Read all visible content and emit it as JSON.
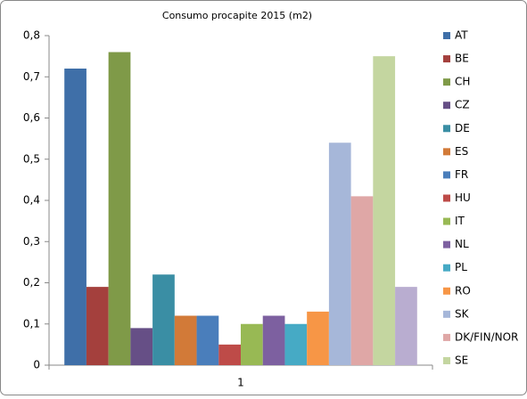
{
  "chart_data": {
    "type": "bar",
    "title": "Consumo procapite 2015 (m2)",
    "categories": [
      "1"
    ],
    "series": [
      {
        "name": "AT",
        "color": "#3f6fa8",
        "values": [
          0.72
        ]
      },
      {
        "name": "BE",
        "color": "#a4403d",
        "values": [
          0.19
        ]
      },
      {
        "name": "CH",
        "color": "#7f9a48",
        "values": [
          0.76
        ]
      },
      {
        "name": "CZ",
        "color": "#664f86",
        "values": [
          0.09
        ]
      },
      {
        "name": "DE",
        "color": "#3a8ea4",
        "values": [
          0.22
        ]
      },
      {
        "name": "ES",
        "color": "#d27a38",
        "values": [
          0.12
        ]
      },
      {
        "name": "FR",
        "color": "#4a7ebb",
        "values": [
          0.12
        ]
      },
      {
        "name": "HU",
        "color": "#be4b48",
        "values": [
          0.05
        ]
      },
      {
        "name": "IT",
        "color": "#98b954",
        "values": [
          0.1
        ]
      },
      {
        "name": "NL",
        "color": "#7d60a0",
        "values": [
          0.12
        ]
      },
      {
        "name": "PL",
        "color": "#46aac5",
        "values": [
          0.1
        ]
      },
      {
        "name": "RO",
        "color": "#f79646",
        "values": [
          0.13
        ]
      },
      {
        "name": "SK",
        "color": "#a6b7d9",
        "values": [
          0.54
        ]
      },
      {
        "name": "DK/FIN/NOR",
        "color": "#dfa7a6",
        "values": [
          0.41
        ]
      },
      {
        "name": "SE",
        "color": "#c4d6a0",
        "values": [
          0.75
        ]
      },
      {
        "color": "#b9add0",
        "values": [
          0.19
        ]
      }
    ],
    "ylim": [
      0,
      0.8
    ],
    "yticks": [
      0,
      {
        "value": 0.1,
        "label": "0,1"
      },
      {
        "value": 0.2,
        "label": "0,2"
      },
      {
        "value": 0.3,
        "label": "0,3"
      },
      {
        "value": 0.4,
        "label": "0,4"
      },
      {
        "value": 0.5,
        "label": "0,5"
      },
      {
        "value": 0.6,
        "label": "0,6"
      },
      {
        "value": 0.7,
        "label": "0,7"
      },
      {
        "value": 0.8,
        "label": "0,8"
      }
    ],
    "grid": false,
    "legend": "right"
  }
}
